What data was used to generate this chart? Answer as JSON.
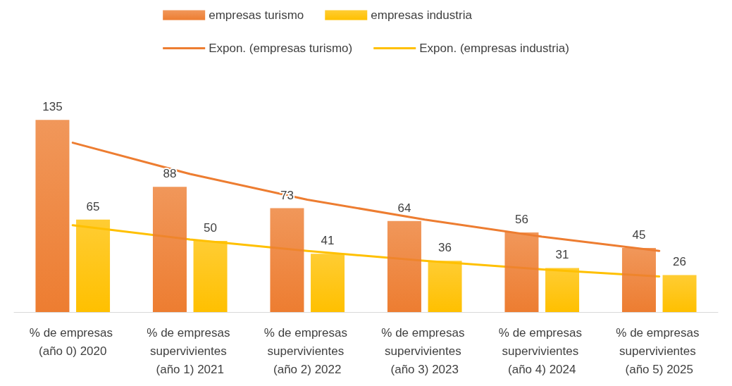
{
  "chart_data": {
    "type": "bar",
    "categories": [
      "% de empresas (año 0) 2020",
      "% de empresas supervivientes (año 1) 2021",
      "% de empresas supervivientes (año 2) 2022",
      "% de empresas supervivientes (año 3) 2023",
      "% de empresas supervivientes (año 4) 2024",
      "% de empresas supervivientes (año 5) 2025"
    ],
    "series": [
      {
        "name": "empresas turismo",
        "color": "#ed7d31",
        "values": [
          135,
          88,
          73,
          64,
          56,
          45
        ],
        "value_labels": [
          "135",
          "88",
          "73",
          "64",
          "56",
          "45"
        ]
      },
      {
        "name": "empresas industria",
        "color": "#ffc000",
        "values": [
          65,
          50,
          41,
          36,
          31,
          26
        ],
        "value_labels": [
          "65",
          "50",
          "41",
          "36",
          "31",
          "26"
        ]
      },
      {
        "name": "Expon. (empresas turismo)",
        "type": "line",
        "color": "#ed7d31",
        "values": [
          119,
          97,
          79,
          65,
          53,
          43
        ]
      },
      {
        "name": "Expon. (empresas industria)",
        "type": "line",
        "color": "#ffc000",
        "values": [
          61,
          51,
          43,
          36,
          30,
          25
        ]
      }
    ],
    "legend": "top",
    "grid": false,
    "marker": "none"
  }
}
